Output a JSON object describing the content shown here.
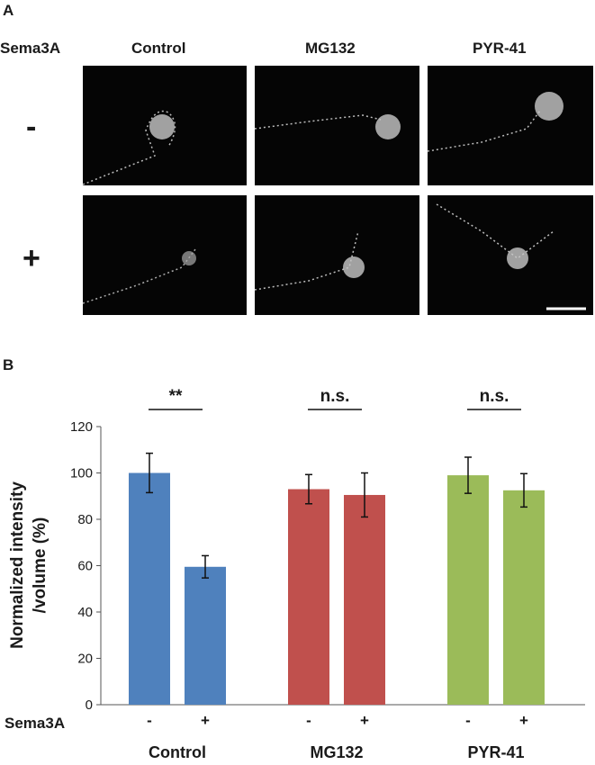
{
  "panel_a": {
    "letter": "A",
    "row_label": "Sema3A",
    "columns": [
      "Control",
      "MG132",
      "PYR-41"
    ],
    "rows": [
      "-",
      "+"
    ]
  },
  "panel_b": {
    "letter": "B"
  },
  "chart_data": {
    "type": "bar",
    "ylabel_line1": "Normalized intensity",
    "ylabel_line2": "/volume (%)",
    "ylim": [
      0,
      120
    ],
    "yticks": [
      0,
      20,
      40,
      60,
      80,
      100,
      120
    ],
    "row_label": "Sema3A",
    "groups": [
      {
        "name": "Control",
        "color": "#4f81bd",
        "bars": [
          {
            "treatment": "-",
            "value": 100,
            "error": 8.5
          },
          {
            "treatment": "+",
            "value": 59.5,
            "error": 4.8
          }
        ],
        "significance": "**"
      },
      {
        "name": "MG132",
        "color": "#c0504d",
        "bars": [
          {
            "treatment": "-",
            "value": 93,
            "error": 6.3
          },
          {
            "treatment": "+",
            "value": 90.5,
            "error": 9.5
          }
        ],
        "significance": "n.s."
      },
      {
        "name": "PYR-41",
        "color": "#9bbb59",
        "bars": [
          {
            "treatment": "-",
            "value": 99,
            "error": 7.8
          },
          {
            "treatment": "+",
            "value": 92.5,
            "error": 7.2
          }
        ],
        "significance": "n.s."
      }
    ]
  }
}
